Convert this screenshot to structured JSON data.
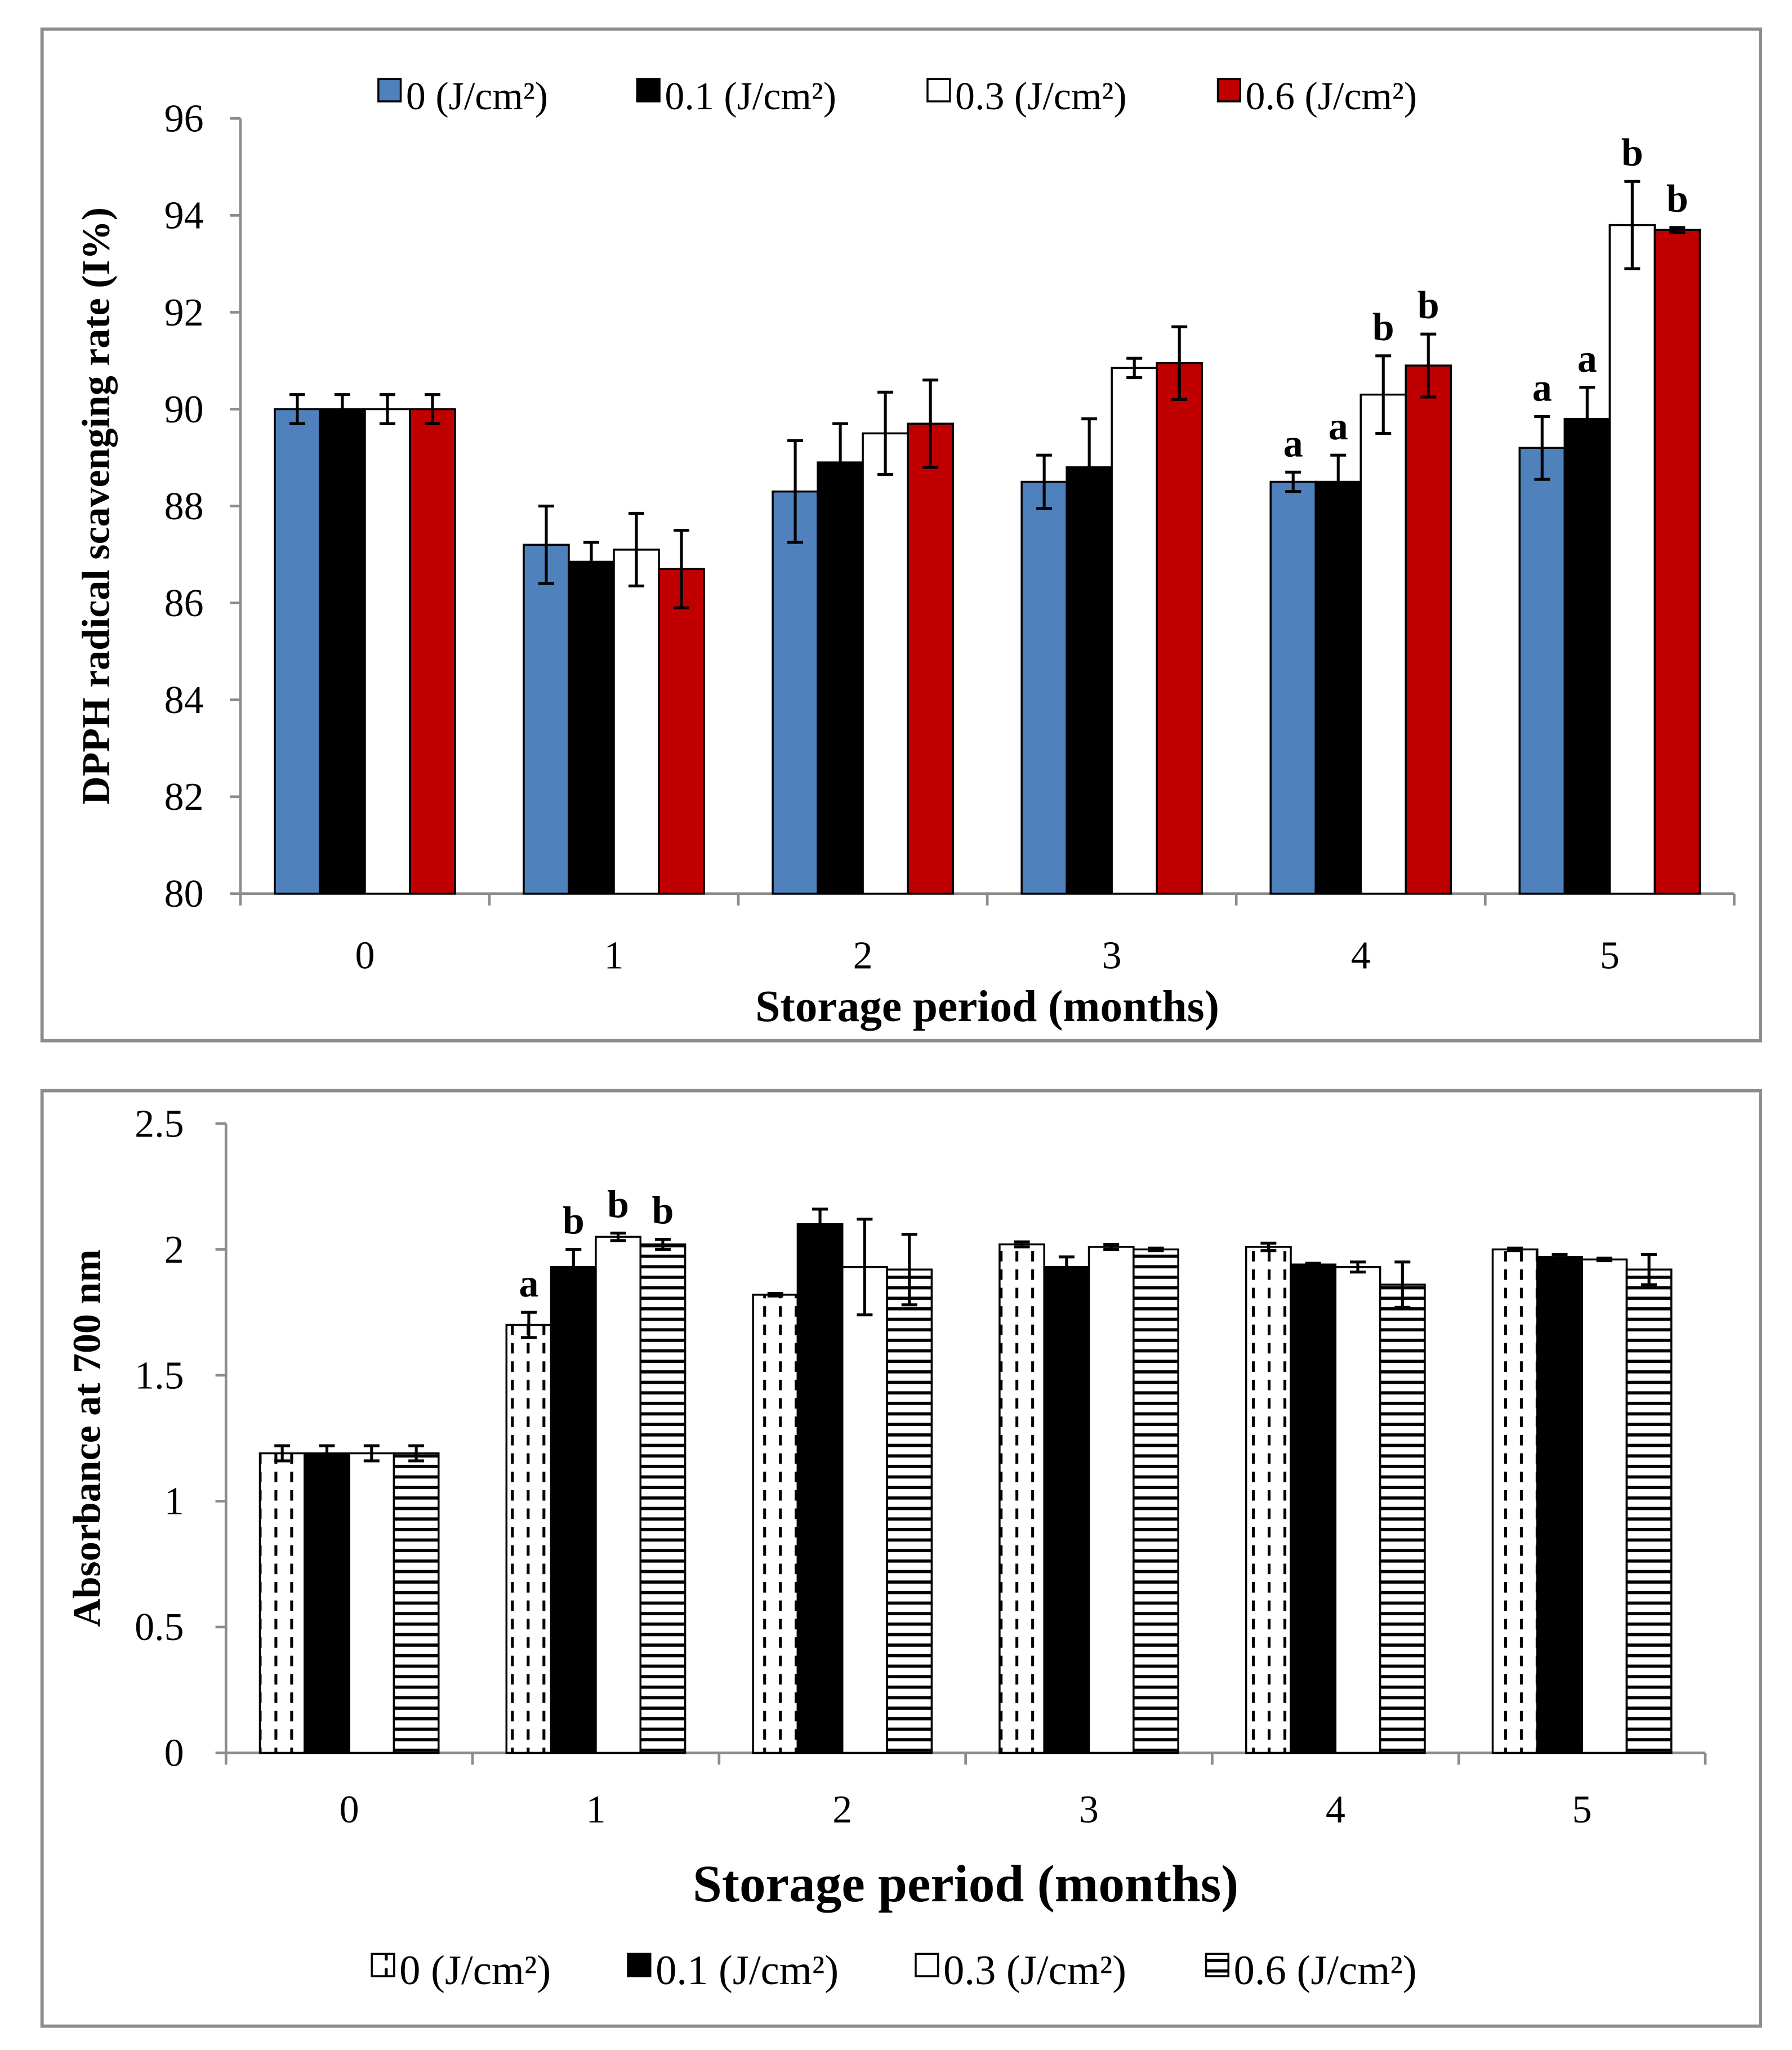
{
  "chart_data": [
    {
      "type": "bar",
      "title": "",
      "xlabel": "Storage period (months)",
      "ylabel": "DPPH radical scavenging rate (I%)",
      "ylim": [
        80,
        96
      ],
      "yticks": [
        "80",
        "82",
        "84",
        "86",
        "88",
        "90",
        "92",
        "94",
        "96"
      ],
      "categories": [
        "0",
        "1",
        "2",
        "3",
        "4",
        "5"
      ],
      "legend_position": "top",
      "series": [
        {
          "name": "0 (J/cm²)",
          "color": "#4f81bd",
          "pattern": "solid",
          "values": [
            90.0,
            87.2,
            88.3,
            88.5,
            88.5,
            89.2
          ],
          "errors": [
            0.3,
            0.8,
            1.05,
            0.55,
            0.2,
            0.65
          ],
          "letters": [
            "",
            "",
            "",
            "",
            "a",
            "a"
          ]
        },
        {
          "name": "0.1 (J/cm²)",
          "color": "#000000",
          "pattern": "solid",
          "values": [
            90.0,
            86.85,
            88.9,
            88.8,
            88.5,
            89.8
          ],
          "errors": [
            0.3,
            0.4,
            0.8,
            1.0,
            0.55,
            0.65
          ],
          "letters": [
            "",
            "",
            "",
            "",
            "a",
            "a"
          ]
        },
        {
          "name": "0.3 (J/cm²)",
          "color": "#ffffff",
          "pattern": "solid",
          "values": [
            90.0,
            87.1,
            89.5,
            90.85,
            90.3,
            93.8
          ],
          "errors": [
            0.3,
            0.75,
            0.85,
            0.2,
            0.8,
            0.9
          ],
          "letters": [
            "",
            "",
            "",
            "",
            "b",
            "b"
          ]
        },
        {
          "name": "0.6 (J/cm²)",
          "color": "#c00000",
          "pattern": "solid",
          "values": [
            90.0,
            86.7,
            89.7,
            90.95,
            90.9,
            93.7
          ],
          "errors": [
            0.3,
            0.8,
            0.9,
            0.75,
            0.65,
            0.05
          ],
          "letters": [
            "",
            "",
            "",
            "",
            "b",
            "b"
          ]
        }
      ]
    },
    {
      "type": "bar",
      "title": "",
      "xlabel": "Storage period (months)",
      "ylabel": "Absorbance at 700 nm",
      "ylim": [
        0,
        2.5
      ],
      "yticks": [
        "0",
        "0.5",
        "1",
        "1.5",
        "2",
        "2.5"
      ],
      "categories": [
        "0",
        "1",
        "2",
        "3",
        "4",
        "5"
      ],
      "legend_position": "bottom",
      "series": [
        {
          "name": "0 (J/cm²)",
          "color": "#ffffff",
          "pattern": "dashed-vertical",
          "values": [
            1.19,
            1.7,
            1.82,
            2.02,
            2.01,
            2.0
          ],
          "errors": [
            0.03,
            0.05,
            0.005,
            0.01,
            0.015,
            0.005
          ],
          "letters": [
            "",
            "a",
            "",
            "",
            "",
            ""
          ]
        },
        {
          "name": "0.1 (J/cm²)",
          "color": "#000000",
          "pattern": "solid",
          "values": [
            1.19,
            1.93,
            2.1,
            1.93,
            1.94,
            1.97
          ],
          "errors": [
            0.03,
            0.07,
            0.06,
            0.04,
            0.005,
            0.01
          ],
          "letters": [
            "",
            "b",
            "",
            "",
            "",
            ""
          ]
        },
        {
          "name": "0.3 (J/cm²)",
          "color": "#ffffff",
          "pattern": "solid",
          "values": [
            1.19,
            2.05,
            1.93,
            2.01,
            1.93,
            1.96
          ],
          "errors": [
            0.03,
            0.015,
            0.19,
            0.01,
            0.02,
            0.005
          ],
          "letters": [
            "",
            "b",
            "",
            "",
            "",
            ""
          ]
        },
        {
          "name": "0.6 (J/cm²)",
          "color": "#ffffff",
          "pattern": "horizontal-stripes",
          "values": [
            1.19,
            2.02,
            1.92,
            2.0,
            1.86,
            1.92
          ],
          "errors": [
            0.03,
            0.02,
            0.14,
            0.005,
            0.09,
            0.06
          ],
          "letters": [
            "",
            "b",
            "",
            "",
            "",
            ""
          ]
        }
      ]
    }
  ]
}
